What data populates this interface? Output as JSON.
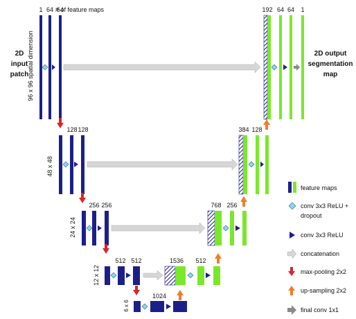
{
  "labels": {
    "feature_maps_header": "# of feature maps",
    "input_line1": "2D",
    "input_line2": "input",
    "input_line3": "patch",
    "output_line1": "2D output",
    "output_line2": "segmentation",
    "output_line3": "map"
  },
  "dims": {
    "l1": "96 x 96 spatial dimension",
    "l2": "48 x 48",
    "l3": "24 x 24",
    "l4": "12 x 12",
    "l5": "6 x 6"
  },
  "counts": {
    "l1_in_a": "1",
    "l1_in_b": "64",
    "l1_in_c": "64",
    "l1_out_a": "192",
    "l1_out_b": "64",
    "l1_out_c": "64",
    "l1_out_d": "1",
    "l2_in_a": "128",
    "l2_in_b": "128",
    "l2_out_a": "384",
    "l2_out_b": "128",
    "l3_in_a": "256",
    "l3_in_b": "256",
    "l3_out_a": "768",
    "l3_out_b": "256",
    "l4_in_a": "512",
    "l4_in_b": "512",
    "l4_out_a": "1536",
    "l4_out_b": "512",
    "l5_a": "1024"
  },
  "legend": {
    "feature_maps": "feature maps",
    "conv_dropout_1": "conv 3x3 ReLU +",
    "conv_dropout_2": "dropout",
    "conv": "conv 3x3 ReLU",
    "concat": "concatenation",
    "maxpool": "max-pooling 2x2",
    "upsample": "up-sampling 2x2",
    "final": "final conv 1x1"
  },
  "colors": {
    "encoder_blue": "#1c1f8a",
    "decoder_green": "#7ae82a",
    "conv_dropout_arrow": "#8fd3e8",
    "pool_arrow": "#d8262a",
    "up_arrow": "#f07d2a",
    "concat_arrow": "#d6d6d6",
    "final_arrow": "#8a8a8a"
  }
}
